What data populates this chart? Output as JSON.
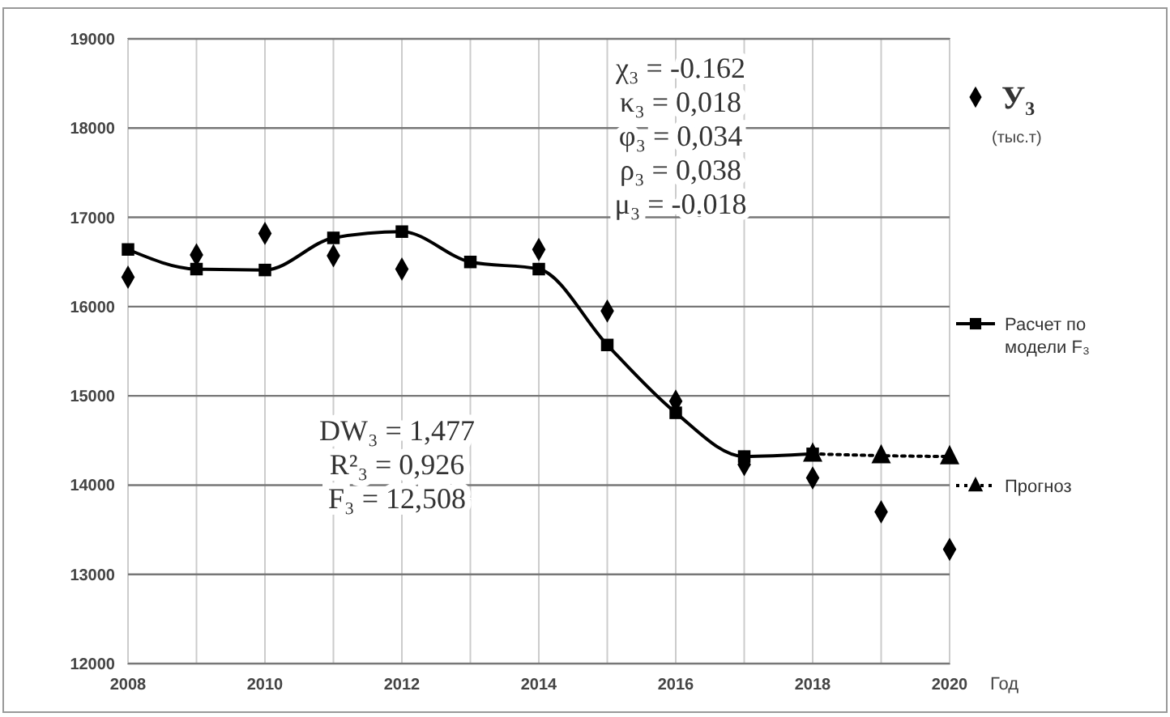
{
  "chart_data": {
    "type": "line",
    "xlabel": "Год",
    "ylabel": "(тыс.т)",
    "x": [
      2008,
      2009,
      2010,
      2011,
      2012,
      2013,
      2014,
      2015,
      2016,
      2017,
      2018,
      2019,
      2020
    ],
    "xlim": [
      2008,
      2020
    ],
    "xticks": [
      2008,
      2010,
      2012,
      2014,
      2016,
      2018,
      2020
    ],
    "ylim": [
      12000,
      19000
    ],
    "yticks": [
      12000,
      13000,
      14000,
      15000,
      16000,
      17000,
      18000,
      19000
    ],
    "grid": true,
    "legend": "right",
    "series": [
      {
        "name": "У₃",
        "type": "scatter",
        "marker": "diamond",
        "color": "#000000",
        "values": [
          16330,
          16580,
          16820,
          16570,
          16420,
          null,
          16640,
          15950,
          14940,
          14230,
          14080,
          13700,
          13280
        ]
      },
      {
        "name": "Расчет по модели F₃",
        "type": "line",
        "marker": "square",
        "line_style": "solid",
        "color": "#000000",
        "values": [
          16640,
          16420,
          16410,
          16770,
          16840,
          16500,
          16420,
          15570,
          14810,
          14320,
          14350,
          null,
          null
        ]
      },
      {
        "name": "Прогноз",
        "type": "line",
        "marker": "triangle",
        "line_style": "dotted",
        "color": "#000000",
        "values": [
          null,
          null,
          null,
          null,
          null,
          null,
          null,
          null,
          null,
          null,
          14350,
          14330,
          14320
        ]
      }
    ],
    "annotations": [
      "χ₃ = -0.162",
      "κ₃ = 0,018",
      "φ₃ = 0,034",
      "ρ₃ = 0,038",
      "μ₃ = -0.018",
      "DW₃ = 1,477",
      "R²₃ = 0,926",
      "F₃ = 12,508"
    ]
  }
}
